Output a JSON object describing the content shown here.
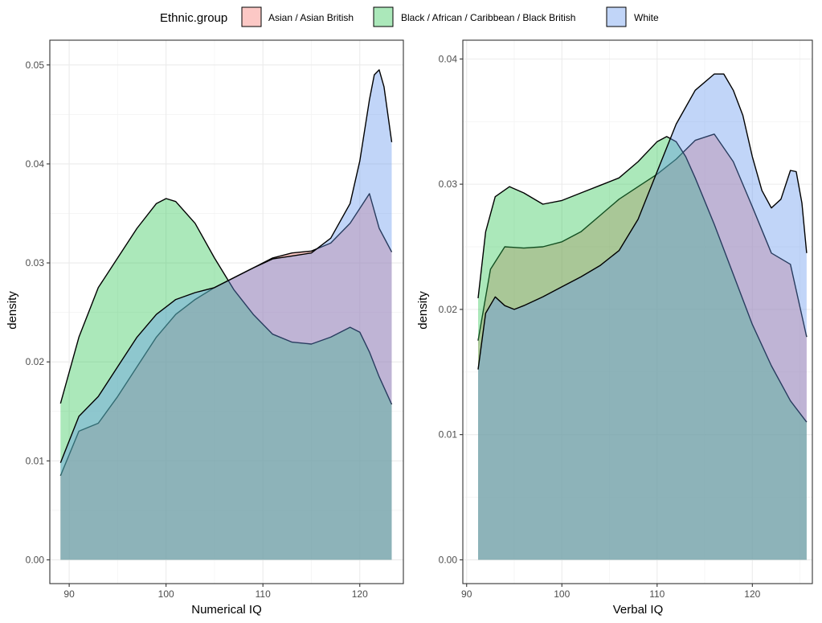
{
  "legend": {
    "title": "Ethnic.group",
    "items": [
      {
        "label": "Asian / Asian British",
        "color": "#F8766D"
      },
      {
        "label": "Black / African / Caribbean / Black British",
        "color": "#2DC653"
      },
      {
        "label": "White",
        "color": "#6495ED"
      }
    ]
  },
  "chart_data": [
    {
      "type": "area",
      "xlabel": "Numerical IQ",
      "ylabel": "density",
      "xlim": [
        88,
        124.5
      ],
      "ylim": [
        -0.0024,
        0.0525
      ],
      "xticks": [
        90,
        100,
        110,
        120
      ],
      "yticks": [
        0,
        0.01,
        0.02,
        0.03,
        0.04,
        0.05
      ],
      "ytick_labels": [
        "0.00",
        "0.01",
        "0.02",
        "0.03",
        "0.04",
        "0.05"
      ],
      "grid": true,
      "series": [
        {
          "name": "Asian / Asian British",
          "color": "#F8766D",
          "x": [
            89.1,
            91,
            93,
            95,
            97,
            99,
            101,
            103,
            105,
            107,
            109,
            111,
            113,
            115,
            117,
            119,
            121,
            122,
            123.3
          ],
          "values": [
            0.0085,
            0.013,
            0.0138,
            0.0165,
            0.0195,
            0.0225,
            0.0248,
            0.0263,
            0.0275,
            0.0285,
            0.0295,
            0.0305,
            0.031,
            0.0312,
            0.032,
            0.034,
            0.037,
            0.0335,
            0.0311
          ]
        },
        {
          "name": "Black / African / Caribbean / Black British",
          "color": "#2DC653",
          "x": [
            89.1,
            91,
            93,
            95,
            97,
            99,
            100,
            101,
            103,
            105,
            107,
            109,
            111,
            113,
            115,
            117,
            119,
            120,
            121,
            122,
            123.3
          ],
          "values": [
            0.0158,
            0.0225,
            0.0275,
            0.0305,
            0.0335,
            0.036,
            0.0365,
            0.0362,
            0.034,
            0.0305,
            0.0273,
            0.0248,
            0.0228,
            0.022,
            0.0218,
            0.0225,
            0.0235,
            0.023,
            0.021,
            0.0185,
            0.0157
          ]
        },
        {
          "name": "White",
          "color": "#6495ED",
          "x": [
            89.1,
            91,
            93,
            95,
            97,
            99,
            101,
            103,
            105,
            107,
            109,
            111,
            113,
            115,
            117,
            119,
            120,
            121,
            121.5,
            122,
            122.5,
            123.3
          ],
          "values": [
            0.0098,
            0.0145,
            0.0165,
            0.0195,
            0.0225,
            0.0248,
            0.0263,
            0.027,
            0.0275,
            0.0285,
            0.0295,
            0.0304,
            0.0307,
            0.031,
            0.0325,
            0.036,
            0.0403,
            0.0465,
            0.049,
            0.0495,
            0.0478,
            0.0422
          ]
        }
      ]
    },
    {
      "type": "area",
      "xlabel": "Verbal IQ",
      "ylabel": "density",
      "xlim": [
        89.6,
        126.3
      ],
      "ylim": [
        -0.0019,
        0.0415
      ],
      "xticks": [
        90,
        100,
        110,
        120
      ],
      "yticks": [
        0,
        0.01,
        0.02,
        0.03,
        0.04
      ],
      "ytick_labels": [
        "0.00",
        "0.01",
        "0.02",
        "0.03",
        "0.04"
      ],
      "grid": true,
      "series": [
        {
          "name": "Asian / Asian British",
          "color": "#F8766D",
          "x": [
            91.2,
            92.5,
            94,
            96,
            98,
            100,
            102,
            104,
            106,
            108,
            110,
            112,
            114,
            116,
            118,
            120,
            122,
            124,
            125.7
          ],
          "values": [
            0.0175,
            0.0232,
            0.025,
            0.0249,
            0.025,
            0.0254,
            0.0262,
            0.0275,
            0.0288,
            0.0298,
            0.0308,
            0.032,
            0.0335,
            0.034,
            0.0318,
            0.0282,
            0.0245,
            0.0236,
            0.0178
          ]
        },
        {
          "name": "Black / African / Caribbean / Black British",
          "color": "#2DC653",
          "x": [
            91.2,
            92,
            93,
            94.5,
            96,
            98,
            100,
            102,
            104,
            106,
            108,
            110,
            111,
            112,
            113,
            114,
            116,
            118,
            120,
            122,
            124,
            125.7
          ],
          "values": [
            0.0209,
            0.0262,
            0.029,
            0.0298,
            0.0293,
            0.0284,
            0.0287,
            0.0293,
            0.0299,
            0.0305,
            0.0318,
            0.0334,
            0.0338,
            0.0334,
            0.0322,
            0.0305,
            0.0268,
            0.0228,
            0.0188,
            0.0155,
            0.0127,
            0.011
          ]
        },
        {
          "name": "White",
          "color": "#6495ED",
          "x": [
            91.2,
            92,
            93,
            94,
            95,
            96,
            98,
            100,
            102,
            104,
            106,
            108,
            110,
            112,
            114,
            116,
            117,
            118,
            119,
            120,
            121,
            122,
            123,
            124,
            124.6,
            125.2,
            125.7
          ],
          "values": [
            0.0152,
            0.0197,
            0.021,
            0.0203,
            0.02,
            0.0203,
            0.021,
            0.0218,
            0.0226,
            0.0235,
            0.0247,
            0.0272,
            0.031,
            0.0348,
            0.0375,
            0.0388,
            0.0388,
            0.0375,
            0.0355,
            0.0322,
            0.0295,
            0.0281,
            0.0288,
            0.0311,
            0.031,
            0.0285,
            0.0245
          ]
        }
      ]
    }
  ]
}
